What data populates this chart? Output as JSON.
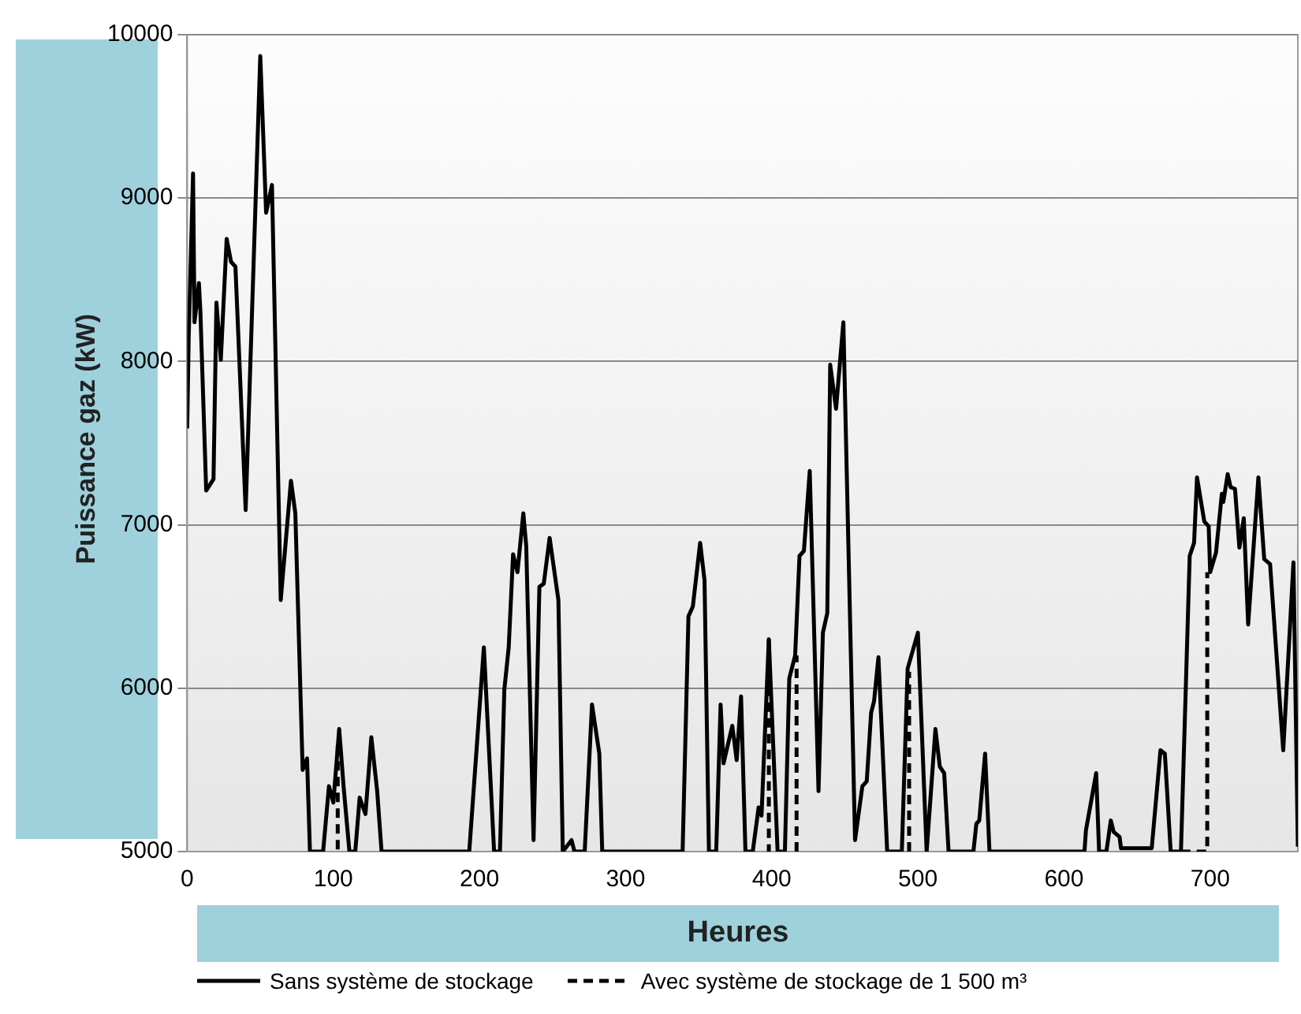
{
  "chart_data": {
    "type": "line",
    "xlabel": "Heures",
    "ylabel": "Puissance gaz (kW)",
    "xlim": [
      0,
      760
    ],
    "xticks": [
      0,
      100,
      200,
      300,
      400,
      500,
      600,
      700
    ],
    "ylim": [
      5000,
      10000
    ],
    "yticks": [
      5000,
      6000,
      7000,
      8000,
      9000,
      10000
    ],
    "grid": "y",
    "legend": "bottom",
    "marker": "none",
    "series": [
      {
        "name": "Sans système de stockage",
        "color": "#000000",
        "line_style": "solid",
        "x": [
          0,
          1,
          4,
          5,
          8,
          9,
          13,
          18,
          20,
          23,
          27,
          30,
          33,
          40,
          50,
          54,
          58,
          64,
          71,
          74,
          79,
          82,
          84,
          93,
          97,
          100,
          104,
          107,
          111,
          115,
          118,
          122,
          126,
          130,
          133,
          193,
          203,
          210,
          214,
          217,
          220,
          223,
          226,
          230,
          232,
          237,
          241,
          244,
          248,
          254,
          257,
          263,
          265,
          272,
          277,
          282,
          284,
          339,
          343,
          346,
          351,
          354,
          357,
          362,
          365,
          367,
          373,
          376,
          379,
          382,
          387,
          391,
          393,
          398,
          404,
          409,
          412,
          416,
          419,
          422,
          426,
          432,
          435,
          438,
          440,
          444,
          449,
          457,
          462,
          465,
          468,
          470,
          473,
          479,
          489,
          493,
          500,
          506,
          512,
          515,
          518,
          521,
          538,
          540,
          542,
          546,
          549,
          614,
          615,
          622,
          624,
          629,
          632,
          634,
          638,
          639,
          660,
          666,
          669,
          673,
          680,
          686,
          689,
          691,
          696,
          699,
          700,
          704,
          708,
          709,
          712,
          714,
          717,
          720,
          723,
          726,
          733,
          737,
          741,
          750,
          757,
          760
        ],
        "values": [
          7590,
          8140,
          9150,
          8240,
          8480,
          8310,
          7210,
          7280,
          8360,
          8010,
          8750,
          8610,
          8580,
          7090,
          9870,
          8910,
          9080,
          6540,
          7270,
          7070,
          5500,
          5570,
          5000,
          5000,
          5400,
          5300,
          5750,
          5400,
          5000,
          5000,
          5330,
          5230,
          5700,
          5370,
          5000,
          5000,
          6250,
          5000,
          5000,
          5990,
          6250,
          6820,
          6710,
          7070,
          6870,
          5070,
          6620,
          6640,
          6920,
          6540,
          5000,
          5070,
          5000,
          5000,
          5900,
          5600,
          5000,
          5000,
          6440,
          6500,
          6890,
          6660,
          5000,
          5000,
          5900,
          5540,
          5770,
          5560,
          5950,
          5000,
          5000,
          5270,
          5220,
          6300,
          5000,
          5000,
          6060,
          6200,
          6810,
          6840,
          7330,
          5370,
          6340,
          6460,
          7980,
          7710,
          8240,
          5070,
          5400,
          5430,
          5850,
          5920,
          6190,
          5000,
          5000,
          6120,
          6340,
          5000,
          5750,
          5520,
          5480,
          5000,
          5000,
          5170,
          5190,
          5600,
          5000,
          5000,
          5130,
          5480,
          5000,
          5000,
          5190,
          5120,
          5090,
          5020,
          5020,
          5620,
          5600,
          5000,
          5000,
          6810,
          6890,
          7290,
          7020,
          6990,
          6710,
          6830,
          7190,
          7140,
          7310,
          7230,
          7220,
          6860,
          7040,
          6390,
          7290,
          6790,
          6760,
          5620,
          6770,
          5030
        ]
      },
      {
        "name": "Avec système de stockage de 1 500 m³",
        "color": "#000000",
        "line_style": "dashed",
        "x": [
          103,
          103,
          200,
          398,
          398,
          405,
          417,
          417,
          450,
          494,
          494,
          600,
          680,
          698,
          698
        ],
        "values": [
          5650,
          5000,
          null,
          6300,
          5000,
          null,
          5000,
          6200,
          null,
          5000,
          6100,
          null,
          5000,
          5000,
          6710
        ]
      }
    ]
  }
}
